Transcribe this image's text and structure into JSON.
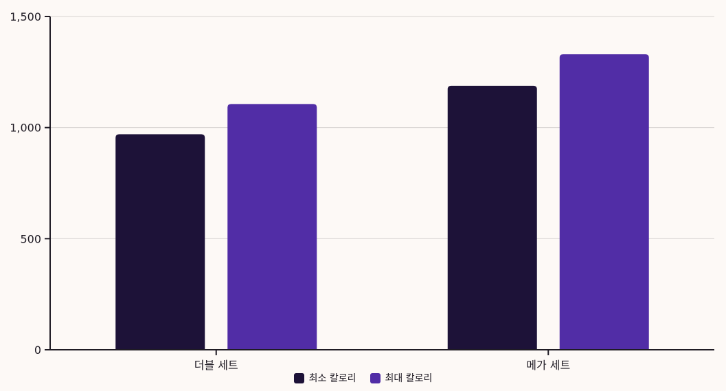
{
  "chart_data": {
    "type": "bar",
    "categories": [
      "더블 세트",
      "메가 세트"
    ],
    "series": [
      {
        "name": "최소 칼로리",
        "values": [
          970,
          1188
        ],
        "color": "#1d1238"
      },
      {
        "name": "최대 칼로리",
        "values": [
          1106,
          1330
        ],
        "color": "#512da6"
      }
    ],
    "ylim": [
      0,
      1500
    ],
    "yticks": [
      0,
      500,
      1000,
      1500
    ],
    "ytick_labels": [
      "0",
      "500",
      "1,000",
      "1,500"
    ],
    "grid": true,
    "legend_position": "bottom-center",
    "title": "",
    "xlabel": "",
    "ylabel": ""
  }
}
